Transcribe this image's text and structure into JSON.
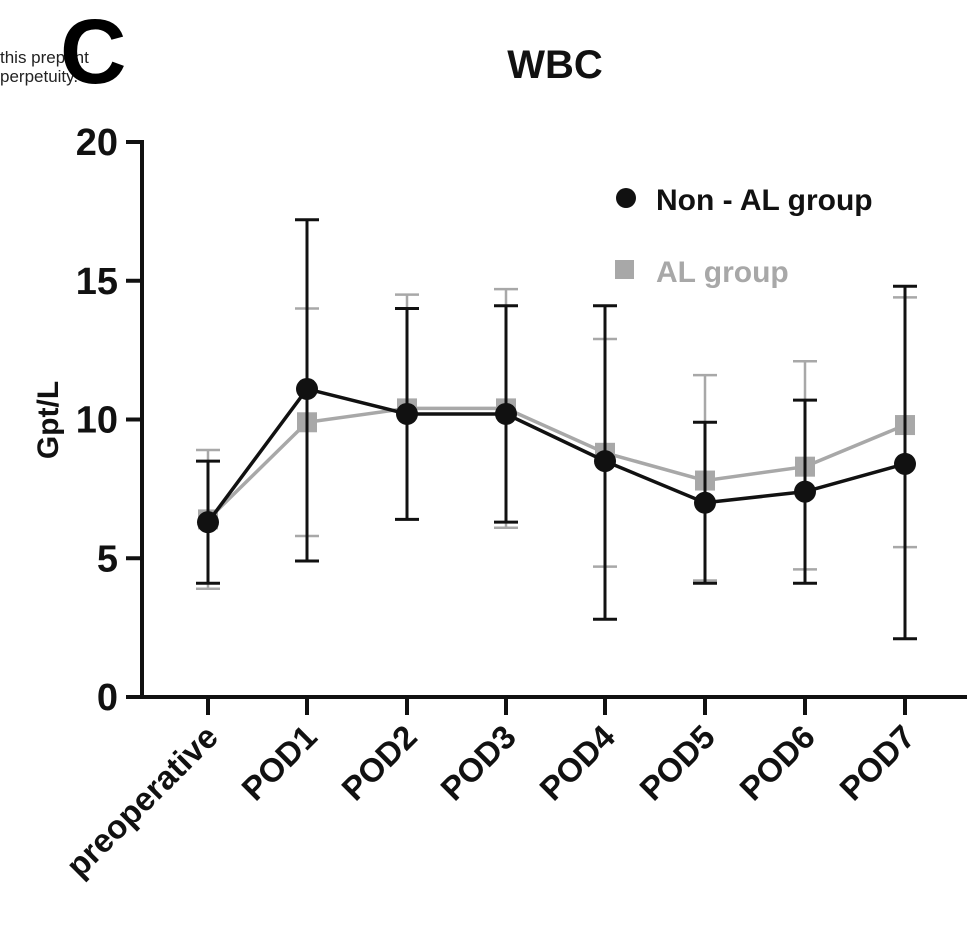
{
  "watermark": {
    "line1": "this preprint",
    "line2": "perpetuity."
  },
  "panel_letter": "C",
  "chart_data": {
    "type": "line",
    "title": "WBC",
    "xlabel": "",
    "ylabel": "Gpt/L",
    "ylim": [
      0,
      20
    ],
    "yticks": [
      0,
      5,
      10,
      15,
      20
    ],
    "grid": false,
    "legend_position": "top-right",
    "categories": [
      "preoperative",
      "POD1",
      "POD2",
      "POD3",
      "POD4",
      "POD5",
      "POD6",
      "POD7"
    ],
    "series": [
      {
        "name": "Non - AL group",
        "marker": "circle",
        "color": "#111111",
        "values": [
          6.3,
          11.1,
          10.2,
          10.2,
          8.5,
          7.0,
          7.4,
          8.4
        ],
        "error_low": [
          4.1,
          4.9,
          6.4,
          6.3,
          2.8,
          4.1,
          4.1,
          2.1
        ],
        "error_high": [
          8.5,
          17.2,
          14.0,
          14.1,
          14.1,
          9.9,
          10.7,
          14.8
        ]
      },
      {
        "name": "AL group",
        "marker": "square",
        "color": "#a8a8a8",
        "values": [
          6.4,
          9.9,
          10.4,
          10.4,
          8.8,
          7.8,
          8.3,
          9.8
        ],
        "error_low": [
          3.9,
          5.8,
          6.4,
          6.1,
          4.7,
          4.2,
          4.6,
          5.4
        ],
        "error_high": [
          8.9,
          14.0,
          14.5,
          14.7,
          12.9,
          11.6,
          12.1,
          14.4
        ]
      }
    ]
  }
}
